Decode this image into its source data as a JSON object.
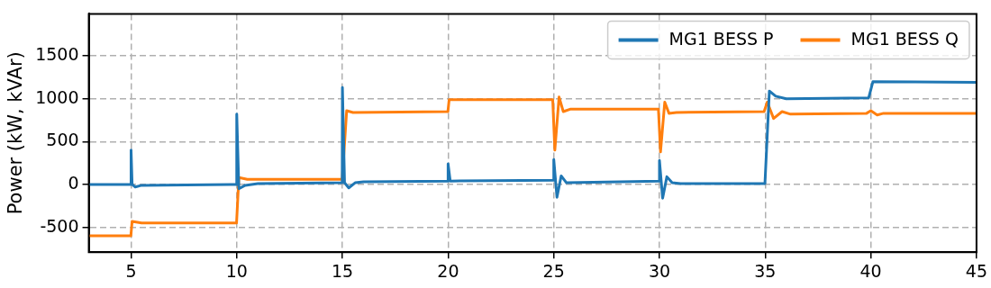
{
  "chart_data": {
    "type": "line",
    "ylabel": "Power (kW, kVAr)",
    "xlim": [
      3,
      45
    ],
    "xticks": [
      5,
      10,
      15,
      20,
      25,
      30,
      35,
      40,
      45
    ],
    "ylim": [
      -790,
      1990
    ],
    "yticks": [
      -500,
      0,
      500,
      1000,
      1500
    ],
    "grid": true,
    "legend": "top right",
    "series": [
      {
        "name": "MG1 BESS P",
        "color": "#1f77b4",
        "x": [
          3,
          4.99,
          5.0,
          5.05,
          5.2,
          5.5,
          9.99,
          10.0,
          10.1,
          10.4,
          11,
          14.99,
          15.0,
          15.1,
          15.3,
          15.6,
          16,
          19.99,
          20.0,
          20.1,
          24.99,
          25.0,
          25.15,
          25.35,
          25.6,
          29.99,
          30.0,
          30.15,
          30.35,
          30.6,
          31,
          34.99,
          35.2,
          35.5,
          36,
          39.9,
          40.1,
          45
        ],
        "values": [
          0,
          0,
          400,
          0,
          -30,
          -10,
          0,
          820,
          -50,
          -10,
          10,
          20,
          1130,
          20,
          -40,
          20,
          30,
          40,
          240,
          40,
          50,
          290,
          -150,
          100,
          20,
          40,
          280,
          -160,
          90,
          20,
          10,
          10,
          1090,
          1030,
          1000,
          1010,
          1200,
          1190
        ]
      },
      {
        "name": "MG1 BESS Q",
        "color": "#ff7f0e",
        "x": [
          3,
          4.99,
          5.05,
          5.5,
          9.99,
          10.1,
          10.5,
          14.99,
          15.2,
          15.5,
          19.99,
          20.05,
          24.95,
          25.05,
          25.25,
          25.45,
          25.8,
          29.95,
          30.05,
          30.25,
          30.45,
          30.8,
          34.95,
          35.1,
          35.4,
          35.8,
          36.2,
          39.8,
          40.0,
          40.3,
          40.6,
          45
        ],
        "values": [
          -600,
          -600,
          -430,
          -450,
          -450,
          80,
          60,
          60,
          860,
          840,
          850,
          990,
          990,
          400,
          1020,
          850,
          880,
          880,
          380,
          960,
          830,
          840,
          850,
          960,
          770,
          850,
          820,
          830,
          860,
          810,
          830,
          830
        ]
      }
    ]
  }
}
